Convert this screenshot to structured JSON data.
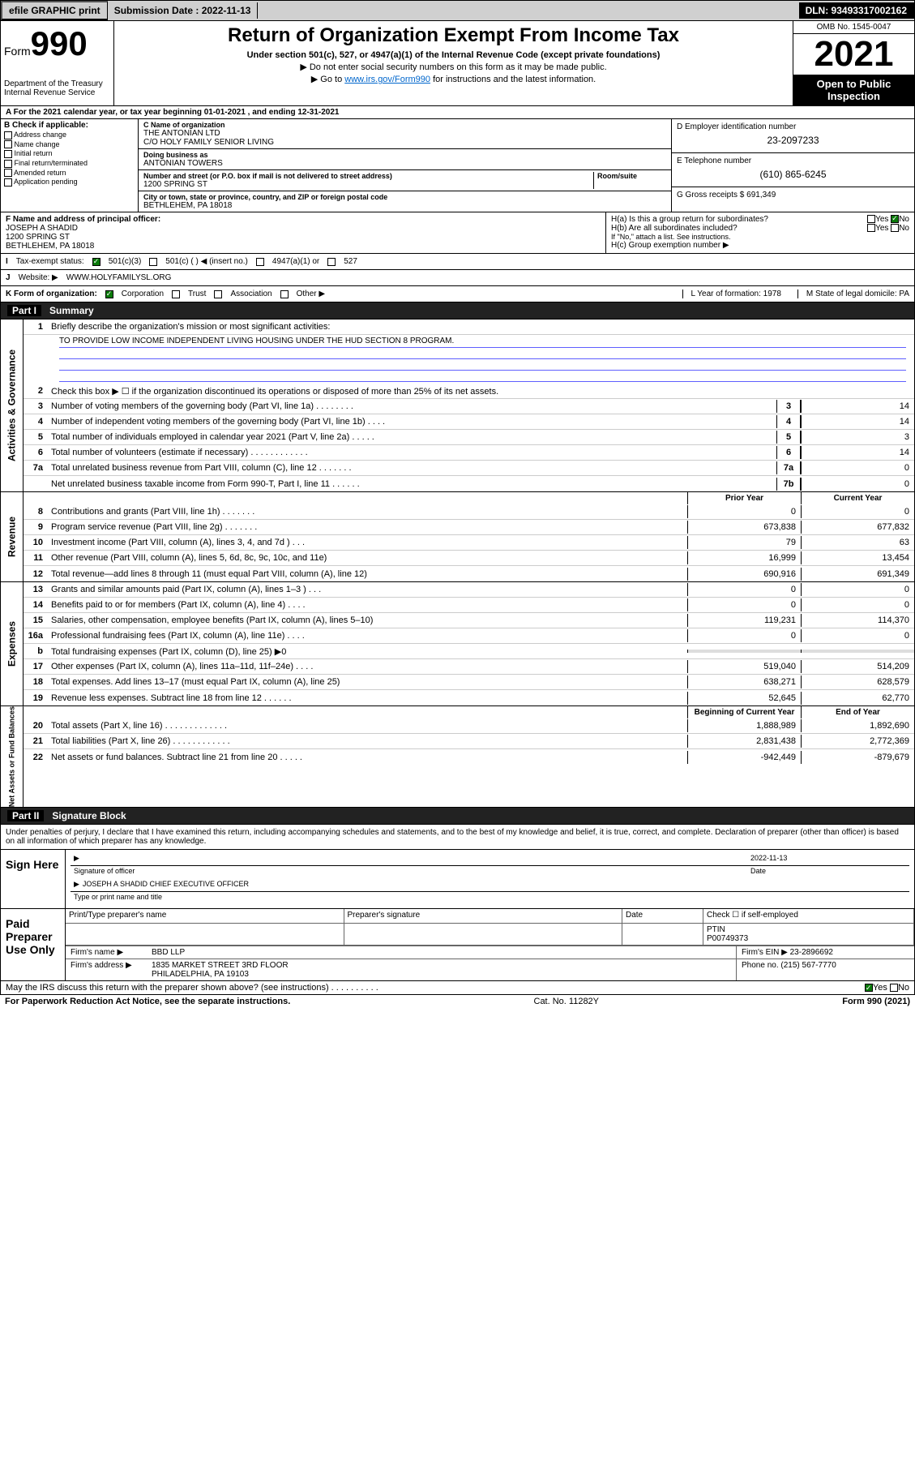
{
  "topbar": {
    "efile": "efile GRAPHIC print",
    "submission": "Submission Date : 2022-11-13",
    "dln": "DLN: 93493317002162"
  },
  "header": {
    "form_prefix": "Form",
    "form_number": "990",
    "dept": "Department of the Treasury",
    "irs": "Internal Revenue Service",
    "title": "Return of Organization Exempt From Income Tax",
    "subtitle": "Under section 501(c), 527, or 4947(a)(1) of the Internal Revenue Code (except private foundations)",
    "note1": "▶ Do not enter social security numbers on this form as it may be made public.",
    "note2_pre": "▶ Go to ",
    "note2_link": "www.irs.gov/Form990",
    "note2_post": " for instructions and the latest information.",
    "omb": "OMB No. 1545-0047",
    "year": "2021",
    "inspect": "Open to Public Inspection"
  },
  "sectionA": {
    "period": "For the 2021 calendar year, or tax year beginning 01-01-2021  , and ending 12-31-2021",
    "b_label": "B Check if applicable:",
    "b_opts": [
      "Address change",
      "Name change",
      "Initial return",
      "Final return/terminated",
      "Amended return",
      "Application pending"
    ],
    "c_label": "C Name of organization",
    "c_name1": "THE ANTONIAN LTD",
    "c_name2": "C/O HOLY FAMILY SENIOR LIVING",
    "dba_label": "Doing business as",
    "dba": "ANTONIAN TOWERS",
    "addr_label": "Number and street (or P.O. box if mail is not delivered to street address)",
    "addr": "1200 SPRING ST",
    "room_label": "Room/suite",
    "city_label": "City or town, state or province, country, and ZIP or foreign postal code",
    "city": "BETHLEHEM, PA  18018",
    "d_label": "D Employer identification number",
    "d_val": "23-2097233",
    "e_label": "E Telephone number",
    "e_val": "(610) 865-6245",
    "g_label": "G Gross receipts $",
    "g_val": "691,349"
  },
  "sectionF": {
    "f_label": "F Name and address of principal officer:",
    "f_name": "JOSEPH A SHADID",
    "f_addr1": "1200 SPRING ST",
    "f_addr2": "BETHLEHEM, PA  18018",
    "ha": "H(a)  Is this a group return for subordinates?",
    "ha_no": "No",
    "hb": "H(b)  Are all subordinates included?",
    "hb_note": "If \"No,\" attach a list. See instructions.",
    "hc": "H(c)  Group exemption number ▶",
    "yes": "Yes",
    "no": "No"
  },
  "sectionI": {
    "label": "Tax-exempt status:",
    "opt1": "501(c)(3)",
    "opt2": "501(c) (  ) ◀ (insert no.)",
    "opt3": "4947(a)(1) or",
    "opt4": "527"
  },
  "sectionJ": {
    "label": "Website: ▶",
    "val": "WWW.HOLYFAMILYSL.ORG"
  },
  "sectionK": {
    "label": "K Form of organization:",
    "opts": [
      "Corporation",
      "Trust",
      "Association",
      "Other ▶"
    ],
    "l_label": "L Year of formation:",
    "l_val": "1978",
    "m_label": "M State of legal domicile:",
    "m_val": "PA"
  },
  "part1": {
    "title": "Part I",
    "name": "Summary",
    "q1_label": "Briefly describe the organization's mission or most significant activities:",
    "q1_val": "TO PROVIDE LOW INCOME INDEPENDENT LIVING HOUSING UNDER THE HUD SECTION 8 PROGRAM.",
    "q2": "Check this box ▶ ☐  if the organization discontinued its operations or disposed of more than 25% of its net assets.",
    "gov_label": "Activities & Governance",
    "rev_label": "Revenue",
    "exp_label": "Expenses",
    "net_label": "Net Assets or Fund Balances",
    "rows_gov": [
      {
        "n": "3",
        "d": "Number of voting members of the governing body (Part VI, line 1a)  .    .    .    .    .    .    .    .",
        "b": "3",
        "v": "14"
      },
      {
        "n": "4",
        "d": "Number of independent voting members of the governing body (Part VI, line 1b)  .    .    .    .",
        "b": "4",
        "v": "14"
      },
      {
        "n": "5",
        "d": "Total number of individuals employed in calendar year 2021 (Part V, line 2a)  .    .    .    .    .",
        "b": "5",
        "v": "3"
      },
      {
        "n": "6",
        "d": "Total number of volunteers (estimate if necessary)  .    .    .    .    .    .    .    .    .    .    .    .",
        "b": "6",
        "v": "14"
      },
      {
        "n": "7a",
        "d": "Total unrelated business revenue from Part VIII, column (C), line 12  .    .    .    .    .    .    .",
        "b": "7a",
        "v": "0"
      },
      {
        "n": "",
        "d": "Net unrelated business taxable income from Form 990-T, Part I, line 11  .    .    .    .    .    .",
        "b": "7b",
        "v": "0"
      }
    ],
    "col_prior": "Prior Year",
    "col_curr": "Current Year",
    "rows_rev": [
      {
        "n": "8",
        "d": "Contributions and grants (Part VIII, line 1h)  .    .    .    .    .    .    .",
        "p": "0",
        "c": "0"
      },
      {
        "n": "9",
        "d": "Program service revenue (Part VIII, line 2g)  .    .    .    .    .    .    .",
        "p": "673,838",
        "c": "677,832"
      },
      {
        "n": "10",
        "d": "Investment income (Part VIII, column (A), lines 3, 4, and 7d )  .    .    .",
        "p": "79",
        "c": "63"
      },
      {
        "n": "11",
        "d": "Other revenue (Part VIII, column (A), lines 5, 6d, 8c, 9c, 10c, and 11e)",
        "p": "16,999",
        "c": "13,454"
      },
      {
        "n": "12",
        "d": "Total revenue—add lines 8 through 11 (must equal Part VIII, column (A), line 12)",
        "p": "690,916",
        "c": "691,349"
      }
    ],
    "rows_exp": [
      {
        "n": "13",
        "d": "Grants and similar amounts paid (Part IX, column (A), lines 1–3 )  .    .    .",
        "p": "0",
        "c": "0"
      },
      {
        "n": "14",
        "d": "Benefits paid to or for members (Part IX, column (A), line 4)  .    .    .    .",
        "p": "0",
        "c": "0"
      },
      {
        "n": "15",
        "d": "Salaries, other compensation, employee benefits (Part IX, column (A), lines 5–10)",
        "p": "119,231",
        "c": "114,370"
      },
      {
        "n": "16a",
        "d": "Professional fundraising fees (Part IX, column (A), line 11e)  .    .    .    .",
        "p": "0",
        "c": "0"
      },
      {
        "n": "b",
        "d": "Total fundraising expenses (Part IX, column (D), line 25) ▶0",
        "p": "",
        "c": "",
        "shade": true
      },
      {
        "n": "17",
        "d": "Other expenses (Part IX, column (A), lines 11a–11d, 11f–24e)  .    .    .    .",
        "p": "519,040",
        "c": "514,209"
      },
      {
        "n": "18",
        "d": "Total expenses. Add lines 13–17 (must equal Part IX, column (A), line 25)",
        "p": "638,271",
        "c": "628,579"
      },
      {
        "n": "19",
        "d": "Revenue less expenses. Subtract line 18 from line 12  .    .    .    .    .    .",
        "p": "52,645",
        "c": "62,770"
      }
    ],
    "col_begin": "Beginning of Current Year",
    "col_end": "End of Year",
    "rows_net": [
      {
        "n": "20",
        "d": "Total assets (Part X, line 16)  .    .    .    .    .    .    .    .    .    .    .    .    .",
        "p": "1,888,989",
        "c": "1,892,690"
      },
      {
        "n": "21",
        "d": "Total liabilities (Part X, line 26)  .    .    .    .    .    .    .    .    .    .    .    .",
        "p": "2,831,438",
        "c": "2,772,369"
      },
      {
        "n": "22",
        "d": "Net assets or fund balances. Subtract line 21 from line 20  .    .    .    .    .",
        "p": "-942,449",
        "c": "-879,679"
      }
    ]
  },
  "part2": {
    "title": "Part II",
    "name": "Signature Block",
    "decl": "Under penalties of perjury, I declare that I have examined this return, including accompanying schedules and statements, and to the best of my knowledge and belief, it is true, correct, and complete. Declaration of preparer (other than officer) is based on all information of which preparer has any knowledge.",
    "sign_here": "Sign Here",
    "sig_officer": "Signature of officer",
    "sig_date": "2022-11-13",
    "date_lbl": "Date",
    "officer": "JOSEPH A SHADID  CHIEF EXECUTIVE OFFICER",
    "officer_lbl": "Type or print name and title",
    "paid": "Paid Preparer Use Only",
    "prep_name_lbl": "Print/Type preparer's name",
    "prep_sig_lbl": "Preparer's signature",
    "check_lbl": "Check ☐ if self-employed",
    "ptin_lbl": "PTIN",
    "ptin": "P00749373",
    "firm_name_lbl": "Firm's name    ▶",
    "firm_name": "BBD LLP",
    "firm_ein_lbl": "Firm's EIN ▶",
    "firm_ein": "23-2896692",
    "firm_addr_lbl": "Firm's address ▶",
    "firm_addr1": "1835 MARKET STREET 3RD FLOOR",
    "firm_addr2": "PHILADELPHIA, PA  19103",
    "phone_lbl": "Phone no.",
    "phone": "(215) 567-7770",
    "may": "May the IRS discuss this return with the preparer shown above? (see instructions)  .    .    .    .    .    .    .    .    .    .",
    "footer_l": "For Paperwork Reduction Act Notice, see the separate instructions.",
    "footer_m": "Cat. No. 11282Y",
    "footer_r": "Form 990 (2021)"
  }
}
